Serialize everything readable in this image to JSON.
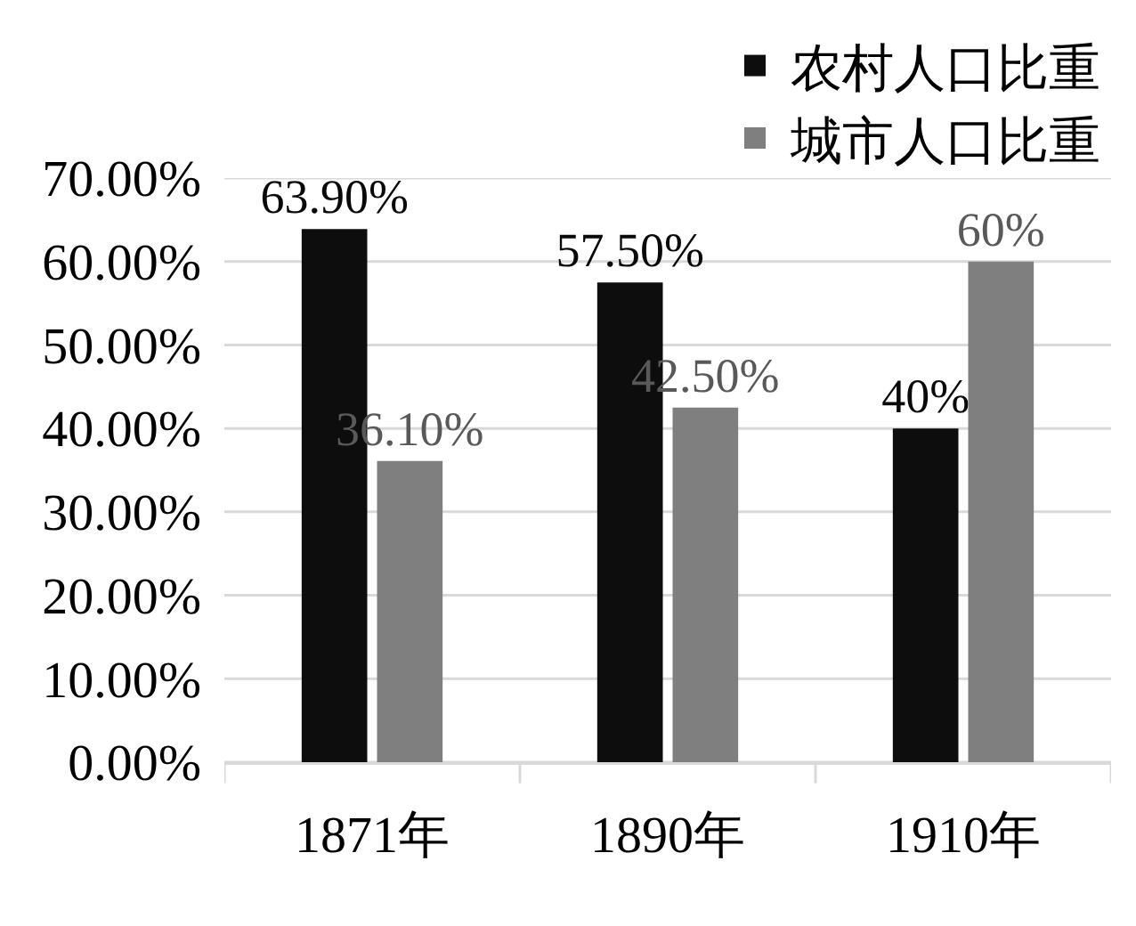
{
  "chart_data": {
    "type": "bar",
    "categories": [
      "1871年",
      "1890年",
      "1910年"
    ],
    "series": [
      {
        "name": "农村人口比重",
        "color": "#0d0d0d",
        "values": [
          63.9,
          57.5,
          40
        ],
        "value_labels": [
          "63.90%",
          "57.50%",
          "40%"
        ]
      },
      {
        "name": "城市人口比重",
        "color": "#7f7f7f",
        "values": [
          36.1,
          42.5,
          60
        ],
        "value_labels": [
          "36.10%",
          "42.50%",
          "60%"
        ]
      }
    ],
    "ylim": [
      0,
      70
    ],
    "yticks": [
      {
        "value": 0,
        "label": "0.00%"
      },
      {
        "value": 10,
        "label": "10.00%"
      },
      {
        "value": 20,
        "label": "20.00%"
      },
      {
        "value": 30,
        "label": "30.00%"
      },
      {
        "value": 40,
        "label": "40.00%"
      },
      {
        "value": 50,
        "label": "50.00%"
      },
      {
        "value": 60,
        "label": "60.00%"
      },
      {
        "value": 70,
        "label": "70.00%"
      }
    ],
    "grid": "y",
    "legend": "top right"
  }
}
